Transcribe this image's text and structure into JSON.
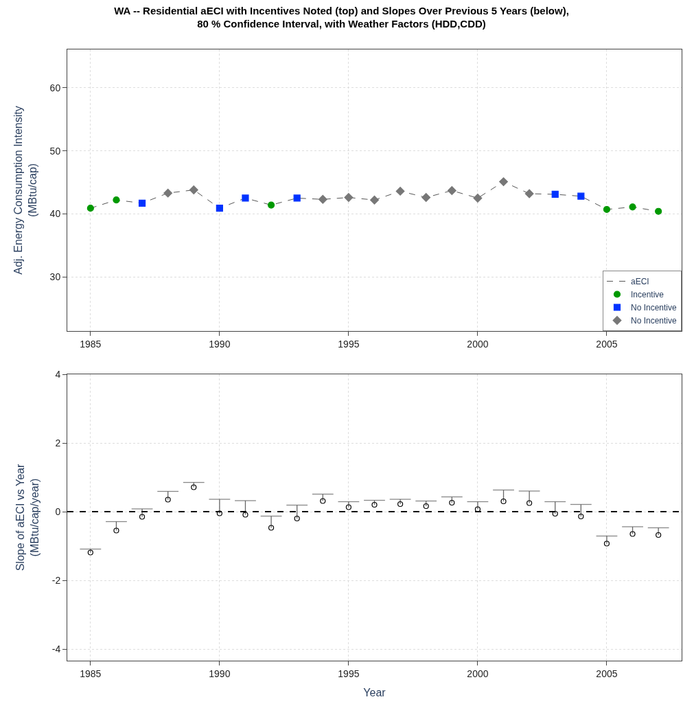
{
  "chart_data": [
    {
      "type": "line",
      "title": "WA -- Residential aECI with Incentives Noted (top) and Slopes Over Previous 5 Years (below),\n80 % Confidence Interval, with Weather Factors (HDD,CDD)",
      "ylabel": "Adj. Energy Consumption Intensity\n(MBtu/cap)",
      "x": [
        1985,
        1986,
        1987,
        1988,
        1989,
        1990,
        1991,
        1992,
        1993,
        1994,
        1995,
        1996,
        1997,
        1998,
        1999,
        2000,
        2001,
        2002,
        2003,
        2004,
        2005,
        2006,
        2007
      ],
      "xlim": [
        1984.1,
        2007.9
      ],
      "xticks": [
        1985,
        1990,
        1995,
        2000,
        2005
      ],
      "ylim": [
        21.4,
        66.1
      ],
      "yticks": [
        30,
        40,
        50,
        60
      ],
      "grid": true,
      "legend": "bottom right",
      "series": [
        {
          "name": "aECI",
          "color": "#555555",
          "marker": "none",
          "line_style": "dashed",
          "values": [
            40.9,
            42.2,
            41.7,
            43.3,
            43.8,
            40.9,
            42.5,
            41.4,
            42.5,
            42.3,
            42.6,
            42.2,
            43.6,
            42.6,
            43.7,
            42.5,
            45.1,
            43.2,
            43.1,
            42.8,
            40.7,
            41.1,
            40.4
          ]
        },
        {
          "name": "Incentive",
          "type": "scatter",
          "color": "#009900",
          "marker": "circle",
          "values": [
            40.9,
            42.2,
            null,
            null,
            null,
            null,
            null,
            41.4,
            null,
            null,
            null,
            null,
            null,
            null,
            null,
            null,
            null,
            null,
            null,
            null,
            40.7,
            41.1,
            40.4
          ]
        },
        {
          "name": "No Incentive",
          "type": "scatter",
          "color": "#0033ff",
          "marker": "square",
          "values": [
            null,
            null,
            41.7,
            null,
            null,
            40.9,
            42.5,
            null,
            42.5,
            null,
            null,
            null,
            null,
            null,
            null,
            null,
            null,
            null,
            43.1,
            42.8,
            null,
            null,
            null
          ]
        },
        {
          "name": "No Incentive",
          "type": "scatter",
          "color": "#777777",
          "marker": "diamond",
          "values": [
            null,
            null,
            null,
            43.3,
            43.8,
            null,
            null,
            null,
            null,
            42.3,
            42.6,
            42.2,
            43.6,
            42.6,
            43.7,
            42.5,
            45.1,
            43.2,
            null,
            null,
            null,
            null,
            null
          ]
        }
      ]
    },
    {
      "type": "scatter",
      "xlabel": "Year",
      "ylabel": "Slope of aECI vs Year\n(MBtu/cap/year)",
      "x": [
        1985,
        1986,
        1987,
        1988,
        1989,
        1990,
        1991,
        1992,
        1993,
        1994,
        1995,
        1996,
        1997,
        1998,
        1999,
        2000,
        2001,
        2002,
        2003,
        2004,
        2005,
        2006,
        2007
      ],
      "xlim": [
        1984.1,
        2007.9
      ],
      "xticks": [
        1985,
        1990,
        1995,
        2000,
        2005
      ],
      "ylim": [
        -4.34,
        4
      ],
      "yticks": [
        -4,
        -2,
        0,
        2,
        4
      ],
      "grid": true,
      "legend": false,
      "ref_lines": [
        {
          "axis": "y",
          "value": 0,
          "color": "#000000",
          "line_style": "dashed"
        }
      ],
      "series": [
        {
          "color": "#000000",
          "marker": "circle",
          "values": [
            -1.19,
            -0.55,
            -0.15,
            0.35,
            0.71,
            -0.05,
            -0.09,
            -0.47,
            -0.2,
            0.31,
            0.13,
            0.2,
            0.22,
            0.16,
            0.26,
            0.07,
            0.3,
            0.25,
            -0.06,
            -0.14,
            -0.93,
            -0.65,
            -0.68
          ],
          "errors": [
            [
              -1.19,
              -1.09
            ],
            [
              -0.55,
              -0.29
            ],
            [
              -0.15,
              0.08
            ],
            [
              0.35,
              0.59
            ],
            [
              0.71,
              0.85
            ],
            [
              -0.05,
              0.36
            ],
            [
              -0.09,
              0.32
            ],
            [
              -0.47,
              -0.13
            ],
            [
              -0.2,
              0.19
            ],
            [
              0.31,
              0.51
            ],
            [
              0.13,
              0.29
            ],
            [
              0.2,
              0.33
            ],
            [
              0.22,
              0.36
            ],
            [
              0.16,
              0.31
            ],
            [
              0.26,
              0.43
            ],
            [
              0.07,
              0.29
            ],
            [
              0.3,
              0.63
            ],
            [
              0.25,
              0.6
            ],
            [
              -0.06,
              0.29
            ],
            [
              -0.14,
              0.21
            ],
            [
              -0.93,
              -0.71
            ],
            [
              -0.65,
              -0.44
            ],
            [
              -0.68,
              -0.47
            ]
          ]
        }
      ]
    }
  ]
}
